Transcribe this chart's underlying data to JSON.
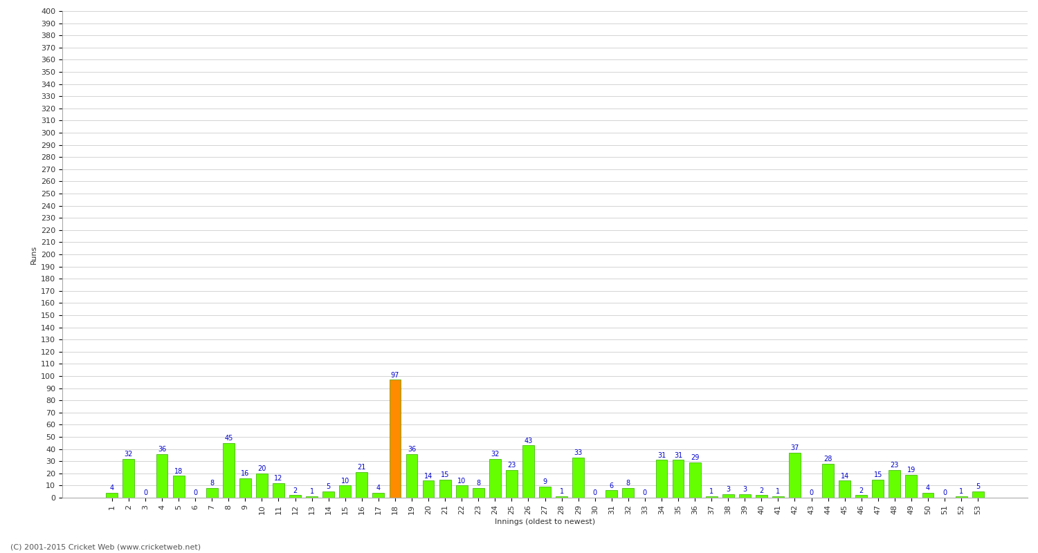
{
  "xlabel": "Innings (oldest to newest)",
  "ylabel": "Runs",
  "background_color": "#ffffff",
  "bar_color_normal": "#66ff00",
  "bar_color_highlight": "#ff8c00",
  "bar_edge_color": "#33aa00",
  "grid_color": "#cccccc",
  "text_color": "#0000cc",
  "tick_color": "#333333",
  "innings": [
    1,
    2,
    3,
    4,
    5,
    6,
    7,
    8,
    9,
    10,
    11,
    12,
    13,
    14,
    15,
    16,
    17,
    18,
    19,
    20,
    21,
    22,
    23,
    24,
    25,
    26,
    27,
    28,
    29,
    30,
    31,
    32,
    33,
    34,
    35,
    36,
    37,
    38,
    39,
    40,
    41,
    42,
    43,
    44,
    45,
    46,
    47,
    48,
    49,
    50,
    51,
    52,
    53
  ],
  "values": [
    4,
    32,
    0,
    36,
    18,
    0,
    8,
    45,
    16,
    20,
    12,
    2,
    1,
    5,
    10,
    21,
    4,
    97,
    36,
    14,
    15,
    10,
    8,
    32,
    23,
    43,
    9,
    1,
    33,
    0,
    6,
    8,
    0,
    31,
    31,
    29,
    1,
    3,
    3,
    2,
    1,
    37,
    0,
    28,
    14,
    2,
    15,
    23,
    19,
    4,
    0,
    1,
    5
  ],
  "highlight_index": 17,
  "ylim": [
    0,
    400
  ],
  "ytick_step": 10,
  "footer": "(C) 2001-2015 Cricket Web (www.cricketweb.net)",
  "footer_color": "#555555",
  "footer_fontsize": 8,
  "bar_label_fontsize": 7,
  "axis_label_fontsize": 8,
  "tick_fontsize": 8
}
